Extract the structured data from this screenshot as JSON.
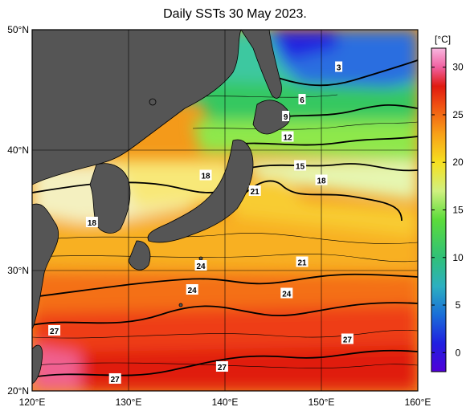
{
  "title": "Daily SSTs 30 May 2023.",
  "map": {
    "lat_range": [
      20,
      50
    ],
    "lon_range": [
      120,
      160
    ],
    "lat_ticks": [
      {
        "value": 50,
        "label": "50°N"
      },
      {
        "value": 40,
        "label": "40°N"
      },
      {
        "value": 30,
        "label": "30°N"
      },
      {
        "value": 20,
        "label": "20°N"
      }
    ],
    "lon_ticks": [
      {
        "value": 120,
        "label": "120°E"
      },
      {
        "value": 130,
        "label": "130°E"
      },
      {
        "value": 140,
        "label": "140°E"
      },
      {
        "value": 150,
        "label": "150°E"
      },
      {
        "value": 160,
        "label": "160°E"
      }
    ],
    "land_color": "#555555",
    "contour_labels": [
      {
        "text": "3",
        "lon": 151.8,
        "lat": 46.9
      },
      {
        "text": "6",
        "lon": 148.0,
        "lat": 44.2
      },
      {
        "text": "9",
        "lon": 146.3,
        "lat": 42.8
      },
      {
        "text": "12",
        "lon": 146.5,
        "lat": 41.1
      },
      {
        "text": "15",
        "lon": 147.8,
        "lat": 38.7
      },
      {
        "text": "18",
        "lon": 150.0,
        "lat": 37.5
      },
      {
        "text": "18",
        "lon": 138.0,
        "lat": 37.9
      },
      {
        "text": "21",
        "lon": 143.1,
        "lat": 36.6
      },
      {
        "text": "18",
        "lon": 126.2,
        "lat": 34.0
      },
      {
        "text": "21",
        "lon": 148.0,
        "lat": 30.7
      },
      {
        "text": "24",
        "lon": 137.5,
        "lat": 30.4
      },
      {
        "text": "24",
        "lon": 136.6,
        "lat": 28.4
      },
      {
        "text": "24",
        "lon": 146.4,
        "lat": 28.1
      },
      {
        "text": "27",
        "lon": 122.3,
        "lat": 25.0
      },
      {
        "text": "27",
        "lon": 152.7,
        "lat": 24.3
      },
      {
        "text": "27",
        "lon": 139.7,
        "lat": 22.0
      },
      {
        "text": "27",
        "lon": 128.6,
        "lat": 21.0
      }
    ]
  },
  "colorbar": {
    "unit": "[°C]",
    "range": [
      -2,
      32
    ],
    "ticks": [
      {
        "value": 0,
        "label": "0"
      },
      {
        "value": 5,
        "label": "5"
      },
      {
        "value": 10,
        "label": "10"
      },
      {
        "value": 15,
        "label": "15"
      },
      {
        "value": 20,
        "label": "20"
      },
      {
        "value": 25,
        "label": "25"
      },
      {
        "value": 30,
        "label": "30"
      }
    ],
    "stops": [
      {
        "value": -2,
        "color": "#5000d8"
      },
      {
        "value": 1,
        "color": "#2020e0"
      },
      {
        "value": 4,
        "color": "#1a6fd8"
      },
      {
        "value": 7,
        "color": "#2cb0c0"
      },
      {
        "value": 10,
        "color": "#30c078"
      },
      {
        "value": 14,
        "color": "#5cdc3a"
      },
      {
        "value": 17,
        "color": "#d0f080"
      },
      {
        "value": 20,
        "color": "#f6e020"
      },
      {
        "value": 23,
        "color": "#f8a018"
      },
      {
        "value": 26,
        "color": "#f05012"
      },
      {
        "value": 28,
        "color": "#e01a10"
      },
      {
        "value": 30,
        "color": "#f060a0"
      },
      {
        "value": 32,
        "color": "#f8b8e0"
      }
    ]
  }
}
